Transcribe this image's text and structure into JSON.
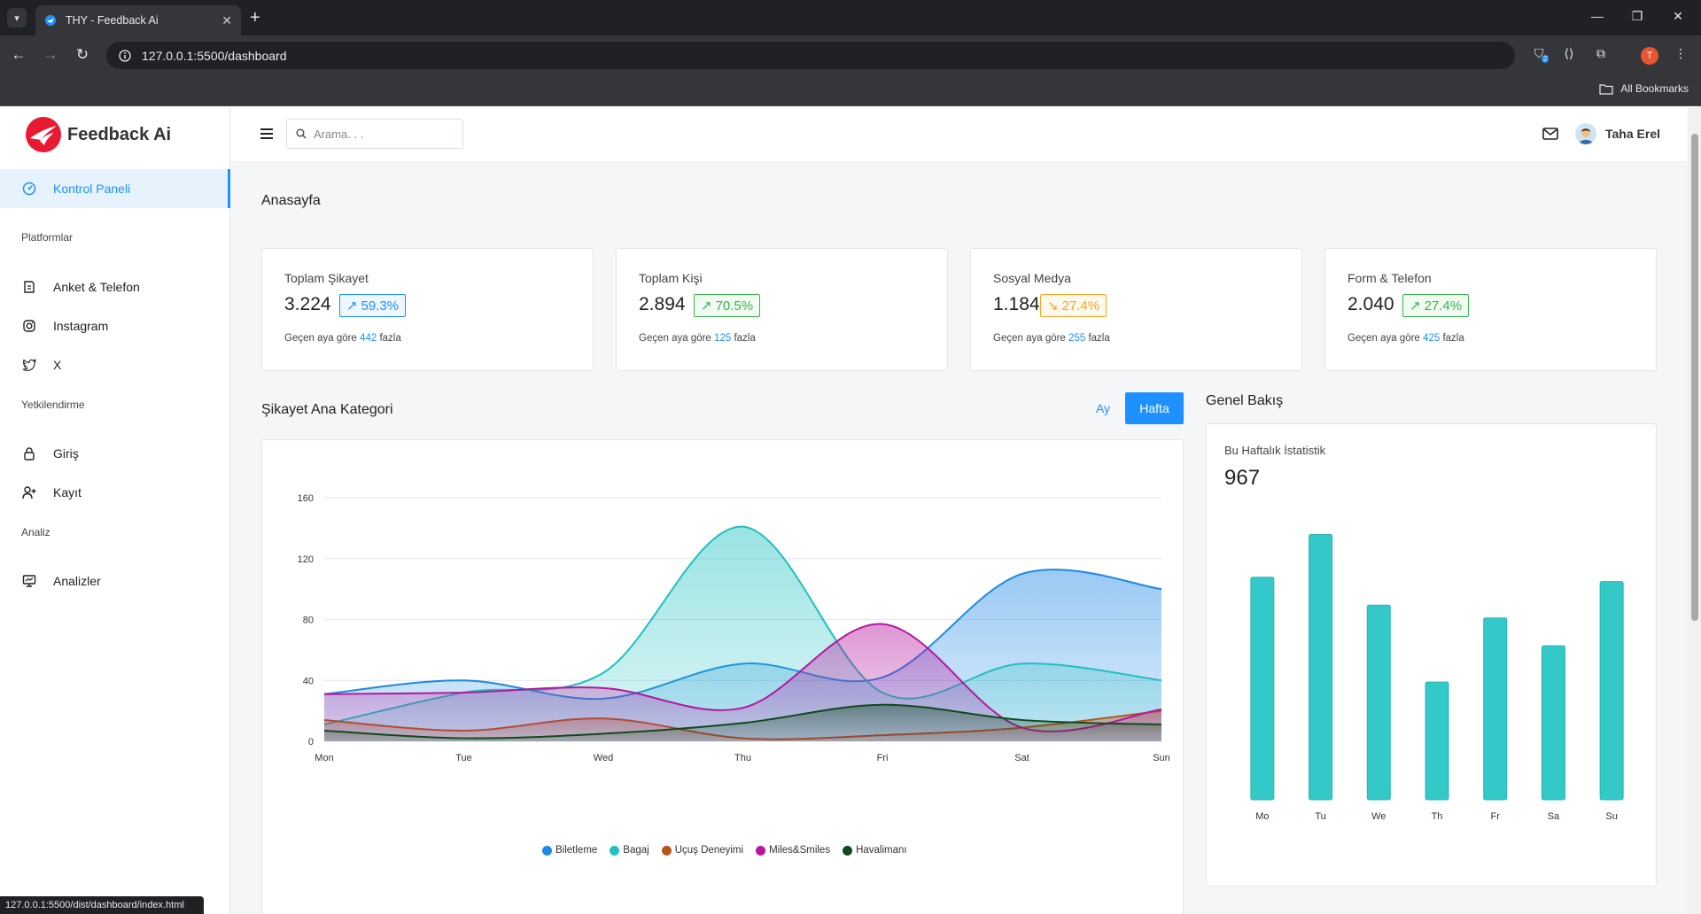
{
  "browser": {
    "tab_title": "THY - Feedback Ai",
    "url": "127.0.0.1:5500/dashboard",
    "all_bookmarks": "All Bookmarks",
    "profile_initial": "T",
    "extension_badge": "2",
    "status_url": "127.0.0.1:5500/dist/dashboard/index.html"
  },
  "sidebar": {
    "logo_text": "Feedback Ai",
    "active_item": "Kontrol Paneli",
    "sections": [
      {
        "label": "Platformlar",
        "items": [
          "Anket & Telefon",
          "Instagram",
          "X"
        ]
      },
      {
        "label": "Yetkilendirme",
        "items": [
          "Giriş",
          "Kayıt"
        ]
      },
      {
        "label": "Analiz",
        "items": [
          "Analizler"
        ]
      }
    ]
  },
  "topbar": {
    "search_placeholder": "Arama. . .",
    "username": "Taha Erel"
  },
  "page": {
    "title": "Anasayfa"
  },
  "stats": [
    {
      "label": "Toplam Şikayet",
      "value": "3.224",
      "change": "59.3%",
      "trend": "up",
      "color": "blue",
      "foot_prefix": "Geçen aya göre",
      "foot_num": "442",
      "foot_suffix": "fazla"
    },
    {
      "label": "Toplam Kişi",
      "value": "2.894",
      "change": "70.5%",
      "trend": "up",
      "color": "green",
      "foot_prefix": "Geçen aya göre",
      "foot_num": "125",
      "foot_suffix": "fazla"
    },
    {
      "label": "Sosyal Medya",
      "value": "1.184",
      "change": "27.4%",
      "trend": "down",
      "color": "orange",
      "foot_prefix": "Geçen aya göre",
      "foot_num": "255",
      "foot_suffix": "fazla"
    },
    {
      "label": "Form & Telefon",
      "value": "2.040",
      "change": "27.4%",
      "trend": "up",
      "color": "green",
      "foot_prefix": "Geçen aya göre",
      "foot_num": "425",
      "foot_suffix": "fazla"
    }
  ],
  "complaints": {
    "title": "Şikayet Ana Kategori",
    "toggle_month": "Ay",
    "toggle_week": "Hafta"
  },
  "overview": {
    "title": "Genel Bakış",
    "stat_label": "Bu Haftalık İstatistik",
    "stat_value": "967"
  },
  "chart_data": [
    {
      "type": "area",
      "categories": [
        "Mon",
        "Tue",
        "Wed",
        "Thu",
        "Fri",
        "Sat",
        "Sun"
      ],
      "ylim": [
        0,
        160
      ],
      "yticks": [
        0,
        40,
        80,
        120,
        160
      ],
      "grid": true,
      "legend_position": "bottom",
      "series": [
        {
          "name": "Biletleme",
          "color": "#1e88e5",
          "values": [
            31,
            40,
            28,
            51,
            42,
            110,
            100
          ]
        },
        {
          "name": "Bagaj",
          "color": "#1fc0c0",
          "values": [
            11,
            32,
            45,
            141,
            32,
            51,
            40
          ]
        },
        {
          "name": "Uçuş Deneyimi",
          "color": "#b5561a",
          "values": [
            14,
            7,
            15,
            2,
            4,
            9,
            20
          ]
        },
        {
          "name": "Miles&Smiles",
          "color": "#b5179e",
          "values": [
            31,
            32,
            35,
            22,
            77,
            9,
            21
          ]
        },
        {
          "name": "Havalimanı",
          "color": "#0f4a1e",
          "values": [
            7,
            2,
            5,
            12,
            24,
            14,
            11
          ]
        }
      ]
    },
    {
      "type": "bar",
      "categories": [
        "Mo",
        "Tu",
        "We",
        "Th",
        "Fr",
        "Sa",
        "Su"
      ],
      "values": [
        104,
        124,
        91,
        55,
        85,
        72,
        102
      ],
      "ylim": [
        0,
        130
      ],
      "color": "#33c9c9"
    }
  ]
}
